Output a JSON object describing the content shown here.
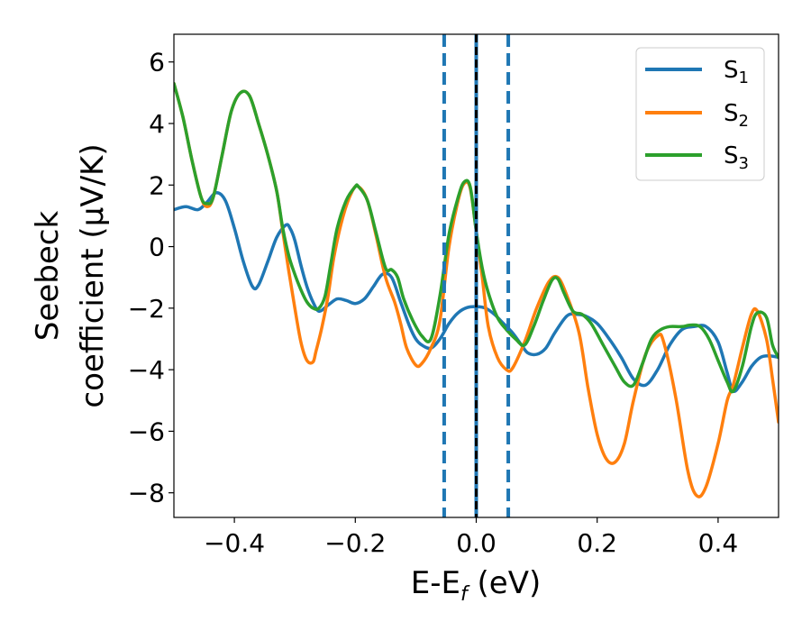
{
  "chart_data": {
    "type": "line",
    "title": "",
    "xlabel": {
      "main": "E-E",
      "sub": "f",
      "suffix": " (eV)"
    },
    "ylabel": {
      "line1": "Seebeck",
      "line2": "coefficient  (μV/K)"
    },
    "xlim": [
      -0.5,
      0.5
    ],
    "ylim": [
      -8.8,
      6.9
    ],
    "xticks": [
      -0.4,
      -0.2,
      0.0,
      0.2,
      0.4
    ],
    "xtick_labels": [
      "−0.4",
      "−0.2",
      "0.0",
      "0.2",
      "0.4"
    ],
    "yticks": [
      -8,
      -6,
      -4,
      -2,
      0,
      2,
      4,
      6
    ],
    "ytick_labels": [
      "−8",
      "−6",
      "−4",
      "−2",
      "0",
      "2",
      "4",
      "6"
    ],
    "grid": false,
    "legend_position": "top-right",
    "vlines": [
      {
        "x": -0.053,
        "style": "dashed",
        "color": "#1f77b4"
      },
      {
        "x": 0.053,
        "style": "dashed",
        "color": "#1f77b4"
      },
      {
        "x": 0.0,
        "style": "solid",
        "color": "#1f77b4"
      },
      {
        "x": 0.0,
        "style": "dashed",
        "color": "#000000"
      }
    ],
    "series": [
      {
        "label": {
          "main": "S",
          "sub": "1"
        },
        "color": "#1f77b4",
        "x": [
          -0.5,
          -0.48,
          -0.46,
          -0.445,
          -0.43,
          -0.415,
          -0.4,
          -0.385,
          -0.37,
          -0.36,
          -0.345,
          -0.33,
          -0.315,
          -0.308,
          -0.3,
          -0.29,
          -0.28,
          -0.27,
          -0.26,
          -0.245,
          -0.23,
          -0.215,
          -0.2,
          -0.185,
          -0.17,
          -0.155,
          -0.14,
          -0.125,
          -0.11,
          -0.1,
          -0.09,
          -0.075,
          -0.06,
          -0.045,
          -0.03,
          -0.015,
          0.0,
          0.015,
          0.03,
          0.045,
          0.06,
          0.075,
          0.085,
          0.1,
          0.115,
          0.13,
          0.15,
          0.165,
          0.18,
          0.2,
          0.22,
          0.24,
          0.26,
          0.28,
          0.3,
          0.32,
          0.34,
          0.36,
          0.38,
          0.4,
          0.415,
          0.425,
          0.44,
          0.455,
          0.47,
          0.485,
          0.5
        ],
        "y": [
          1.2,
          1.3,
          1.2,
          1.45,
          1.75,
          1.5,
          0.6,
          -0.5,
          -1.3,
          -1.25,
          -0.5,
          0.3,
          0.7,
          0.6,
          0.2,
          -0.6,
          -1.3,
          -1.8,
          -2.1,
          -1.9,
          -1.7,
          -1.75,
          -1.85,
          -1.7,
          -1.3,
          -0.9,
          -1.0,
          -1.8,
          -2.6,
          -3.0,
          -3.2,
          -3.3,
          -3.0,
          -2.5,
          -2.15,
          -1.98,
          -1.95,
          -2.0,
          -2.2,
          -2.5,
          -2.8,
          -3.2,
          -3.45,
          -3.5,
          -3.3,
          -2.8,
          -2.25,
          -2.2,
          -2.25,
          -2.5,
          -3.0,
          -3.6,
          -4.3,
          -4.5,
          -4.0,
          -3.2,
          -2.7,
          -2.6,
          -2.6,
          -3.1,
          -4.1,
          -4.7,
          -4.4,
          -3.9,
          -3.6,
          -3.55,
          -3.6
        ]
      },
      {
        "label": {
          "main": "S",
          "sub": "2"
        },
        "color": "#ff7f0e",
        "x": [
          -0.5,
          -0.485,
          -0.47,
          -0.455,
          -0.445,
          -0.435,
          -0.42,
          -0.405,
          -0.39,
          -0.375,
          -0.36,
          -0.345,
          -0.33,
          -0.32,
          -0.31,
          -0.3,
          -0.29,
          -0.28,
          -0.27,
          -0.265,
          -0.255,
          -0.245,
          -0.235,
          -0.22,
          -0.205,
          -0.195,
          -0.18,
          -0.165,
          -0.15,
          -0.135,
          -0.125,
          -0.115,
          -0.1,
          -0.09,
          -0.075,
          -0.06,
          -0.045,
          -0.03,
          -0.02,
          -0.01,
          0.0,
          0.01,
          0.02,
          0.035,
          0.05,
          0.06,
          0.08,
          0.1,
          0.12,
          0.135,
          0.15,
          0.17,
          0.185,
          0.2,
          0.215,
          0.23,
          0.245,
          0.26,
          0.28,
          0.3,
          0.31,
          0.33,
          0.35,
          0.365,
          0.38,
          0.4,
          0.415,
          0.425,
          0.44,
          0.455,
          0.465,
          0.48,
          0.49,
          0.5
        ],
        "y": [
          5.3,
          4.2,
          2.8,
          1.6,
          1.3,
          1.6,
          3.0,
          4.4,
          5.0,
          4.9,
          4.0,
          3.0,
          1.8,
          0.5,
          -0.8,
          -2.0,
          -3.1,
          -3.7,
          -3.75,
          -3.4,
          -2.6,
          -1.6,
          -0.3,
          1.0,
          1.8,
          1.95,
          1.5,
          0.3,
          -1.0,
          -1.8,
          -2.5,
          -3.3,
          -3.85,
          -3.8,
          -3.3,
          -2.4,
          0.0,
          1.5,
          2.05,
          1.9,
          0.5,
          -1.0,
          -2.6,
          -3.6,
          -4.0,
          -3.95,
          -3.1,
          -2.0,
          -1.15,
          -1.0,
          -1.6,
          -2.8,
          -4.6,
          -6.1,
          -6.9,
          -7.0,
          -6.4,
          -5.0,
          -3.5,
          -2.9,
          -3.1,
          -4.9,
          -7.3,
          -8.1,
          -7.8,
          -6.4,
          -5.0,
          -4.5,
          -3.3,
          -2.2,
          -2.1,
          -3.0,
          -4.3,
          -5.7
        ]
      },
      {
        "label": {
          "main": "S",
          "sub": "3"
        },
        "color": "#2ca02c",
        "x": [
          -0.5,
          -0.485,
          -0.47,
          -0.455,
          -0.445,
          -0.435,
          -0.42,
          -0.405,
          -0.39,
          -0.375,
          -0.36,
          -0.345,
          -0.33,
          -0.32,
          -0.31,
          -0.3,
          -0.29,
          -0.28,
          -0.27,
          -0.26,
          -0.25,
          -0.24,
          -0.23,
          -0.215,
          -0.2,
          -0.195,
          -0.18,
          -0.165,
          -0.15,
          -0.14,
          -0.13,
          -0.12,
          -0.105,
          -0.09,
          -0.075,
          -0.06,
          -0.045,
          -0.03,
          -0.02,
          -0.01,
          0.0,
          0.01,
          0.02,
          0.035,
          0.05,
          0.065,
          0.08,
          0.095,
          0.11,
          0.125,
          0.135,
          0.145,
          0.16,
          0.175,
          0.19,
          0.21,
          0.23,
          0.245,
          0.26,
          0.275,
          0.29,
          0.305,
          0.32,
          0.34,
          0.355,
          0.37,
          0.385,
          0.4,
          0.415,
          0.425,
          0.44,
          0.455,
          0.465,
          0.48,
          0.49,
          0.5
        ],
        "y": [
          5.3,
          4.2,
          2.8,
          1.6,
          1.4,
          1.6,
          3.0,
          4.4,
          5.0,
          4.9,
          4.0,
          3.0,
          1.8,
          0.6,
          -0.3,
          -0.9,
          -1.4,
          -1.8,
          -2.0,
          -2.0,
          -1.6,
          -0.5,
          0.6,
          1.5,
          1.95,
          1.95,
          1.5,
          0.4,
          -0.7,
          -0.75,
          -1.0,
          -1.7,
          -2.4,
          -2.9,
          -3.0,
          -1.6,
          0.4,
          1.6,
          2.1,
          1.95,
          0.5,
          -0.7,
          -1.5,
          -2.3,
          -2.7,
          -3.0,
          -3.2,
          -2.6,
          -1.8,
          -1.1,
          -1.05,
          -1.5,
          -2.1,
          -2.2,
          -2.5,
          -3.2,
          -3.9,
          -4.4,
          -4.5,
          -3.8,
          -3.0,
          -2.7,
          -2.6,
          -2.6,
          -2.55,
          -2.6,
          -3.0,
          -3.7,
          -4.4,
          -4.7,
          -3.9,
          -2.6,
          -2.15,
          -2.3,
          -3.2,
          -3.6
        ]
      }
    ]
  }
}
